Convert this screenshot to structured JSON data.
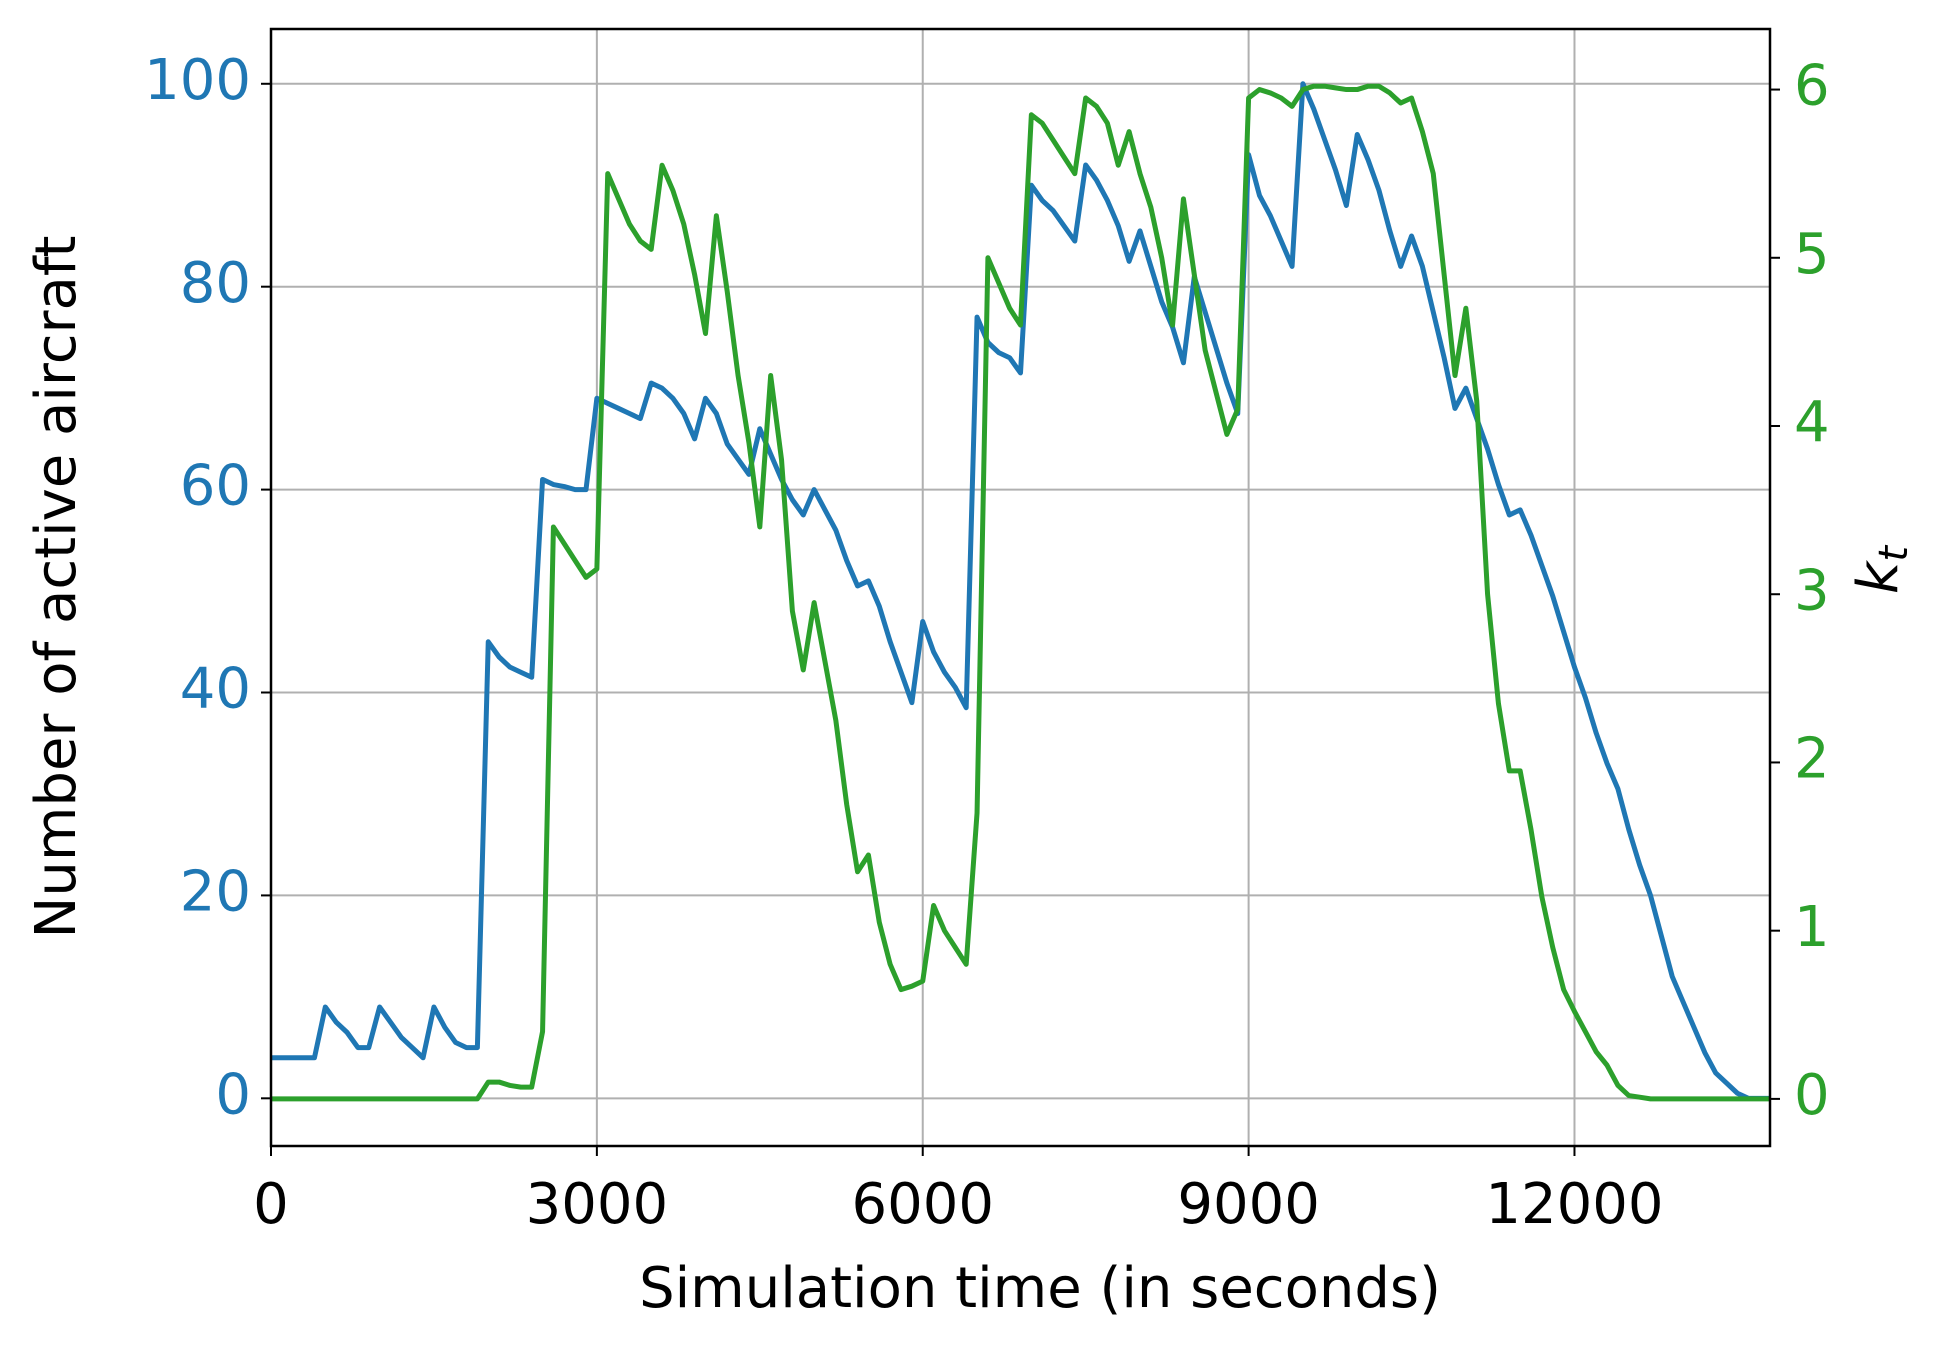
{
  "chart_data": {
    "type": "line",
    "xlabel": "Simulation time (in seconds)",
    "ylabel": "Number of active aircraft",
    "y2label": "k",
    "y2label_sub": "t",
    "xlim": [
      0,
      13800
    ],
    "xticks": [
      0,
      3000,
      6000,
      9000,
      12000
    ],
    "ylim": [
      -4.7,
      105.4
    ],
    "yticks": [
      0,
      20,
      40,
      60,
      80,
      100
    ],
    "y2lim": [
      -0.28,
      6.36
    ],
    "y2ticks": [
      0,
      1,
      2,
      3,
      4,
      5,
      6
    ],
    "grid": true,
    "ycolor": "#1f77b4",
    "y2color": "#2ca02c",
    "x": [
      0,
      100,
      200,
      300,
      400,
      500,
      600,
      700,
      800,
      900,
      1000,
      1100,
      1200,
      1300,
      1400,
      1500,
      1600,
      1700,
      1800,
      1900,
      2000,
      2100,
      2200,
      2300,
      2400,
      2500,
      2600,
      2700,
      2800,
      2900,
      3000,
      3100,
      3200,
      3300,
      3400,
      3500,
      3600,
      3700,
      3800,
      3900,
      4000,
      4100,
      4200,
      4300,
      4400,
      4500,
      4600,
      4700,
      4800,
      4900,
      5000,
      5100,
      5200,
      5300,
      5400,
      5500,
      5600,
      5700,
      5800,
      5900,
      6000,
      6100,
      6200,
      6300,
      6400,
      6500,
      6600,
      6700,
      6800,
      6900,
      7000,
      7100,
      7200,
      7300,
      7400,
      7500,
      7600,
      7700,
      7800,
      7900,
      8000,
      8100,
      8200,
      8300,
      8400,
      8500,
      8600,
      8700,
      8800,
      8900,
      9000,
      9100,
      9200,
      9300,
      9400,
      9500,
      9600,
      9700,
      9800,
      9900,
      10000,
      10100,
      10200,
      10300,
      10400,
      10500,
      10600,
      10700,
      10800,
      10900,
      11000,
      11100,
      11200,
      11300,
      11400,
      11500,
      11600,
      11700,
      11800,
      11900,
      12000,
      12100,
      12200,
      12300,
      12400,
      12500,
      12600,
      12700,
      12800,
      12900,
      13000,
      13100,
      13200,
      13300,
      13400,
      13500,
      13600,
      13700,
      13800
    ],
    "series": [
      {
        "name": "Number of active aircraft",
        "color": "#1f77b4",
        "axis": "y",
        "values": [
          4,
          4,
          4,
          4,
          4,
          9,
          7.5,
          6.5,
          5,
          5,
          9,
          7.5,
          6,
          5,
          4,
          9,
          7,
          5.5,
          5,
          5,
          45,
          43.5,
          42.5,
          42,
          41.5,
          61,
          60.5,
          60.3,
          60,
          60,
          69,
          68.5,
          68,
          67.5,
          67,
          70.5,
          70,
          69,
          67.5,
          65,
          69,
          67.5,
          64.5,
          63,
          61.5,
          66,
          63.5,
          61,
          59,
          57.5,
          60,
          58,
          56,
          53,
          50.5,
          51,
          48.5,
          45,
          42,
          39,
          47,
          44,
          42,
          40.5,
          38.5,
          77,
          74.5,
          73.5,
          73,
          71.5,
          90,
          88.5,
          87.5,
          86,
          84.5,
          92,
          90.5,
          88.5,
          86,
          82.5,
          85.5,
          82,
          78.5,
          76,
          72.5,
          81,
          77.5,
          74,
          70.5,
          67.5,
          93,
          89,
          87,
          84.5,
          82,
          100,
          97.5,
          94.5,
          91.5,
          88,
          95,
          92.5,
          89.5,
          85.5,
          82,
          85,
          82,
          77.5,
          73,
          68,
          70,
          67,
          64,
          60.5,
          57.5,
          58,
          55.5,
          52.5,
          49.5,
          46,
          42.5,
          39.5,
          36,
          33,
          30.5,
          26.5,
          23,
          20,
          16,
          12,
          9.5,
          7,
          4.5,
          2.5,
          1.5,
          0.5,
          0,
          0,
          0
        ]
      },
      {
        "name": "k_t",
        "color": "#2ca02c",
        "axis": "y2",
        "values": [
          0,
          0,
          0,
          0,
          0,
          0,
          0,
          0,
          0,
          0,
          0,
          0,
          0,
          0,
          0,
          0,
          0,
          0,
          0,
          0,
          0.1,
          0.1,
          0.08,
          0.07,
          0.07,
          0.4,
          3.4,
          3.3,
          3.2,
          3.1,
          3.15,
          5.5,
          5.35,
          5.2,
          5.1,
          5.05,
          5.55,
          5.4,
          5.2,
          4.9,
          4.55,
          5.25,
          4.8,
          4.3,
          3.9,
          3.4,
          4.3,
          3.8,
          2.9,
          2.55,
          2.95,
          2.6,
          2.25,
          1.75,
          1.35,
          1.45,
          1.05,
          0.8,
          0.65,
          0.67,
          0.7,
          1.15,
          1.0,
          0.9,
          0.8,
          1.7,
          5.0,
          4.85,
          4.7,
          4.6,
          5.85,
          5.8,
          5.7,
          5.6,
          5.5,
          5.95,
          5.9,
          5.8,
          5.55,
          5.75,
          5.5,
          5.3,
          5.0,
          4.6,
          5.35,
          4.9,
          4.45,
          4.2,
          3.95,
          4.1,
          5.95,
          6.0,
          5.98,
          5.95,
          5.9,
          6.0,
          6.02,
          6.02,
          6.01,
          6.0,
          6.0,
          6.02,
          6.02,
          5.98,
          5.92,
          5.95,
          5.75,
          5.5,
          4.9,
          4.3,
          4.7,
          4.15,
          3.0,
          2.35,
          1.95,
          1.95,
          1.6,
          1.2,
          0.9,
          0.65,
          0.52,
          0.4,
          0.28,
          0.2,
          0.08,
          0.02,
          0.01,
          0,
          0,
          0,
          0,
          0,
          0,
          0,
          0,
          0,
          0,
          0,
          0
        ]
      }
    ]
  }
}
